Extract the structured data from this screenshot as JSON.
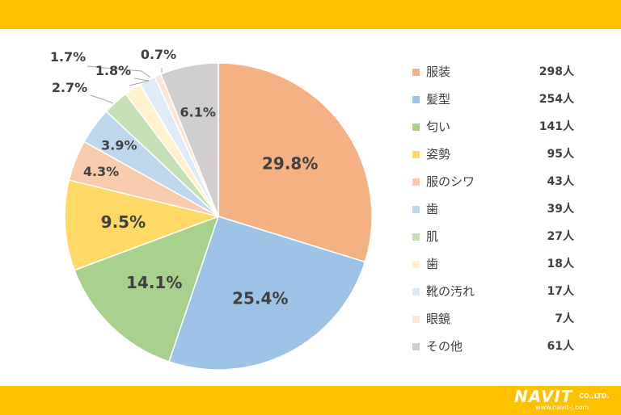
{
  "chart_data": {
    "type": "pie",
    "start_angle_deg": 0,
    "direction": "clockwise",
    "slices": [
      {
        "label": "服装",
        "count": "298人",
        "percent": 29.8,
        "percent_label": "29.8%",
        "color": "#F4B183"
      },
      {
        "label": "髪型",
        "count": "254人",
        "percent": 25.4,
        "percent_label": "25.4%",
        "color": "#9DC3E6"
      },
      {
        "label": "匂い",
        "count": "141人",
        "percent": 14.1,
        "percent_label": "14.1%",
        "color": "#A9D18E"
      },
      {
        "label": "姿勢",
        "count": "95人",
        "percent": 9.5,
        "percent_label": "9.5%",
        "color": "#FFD966"
      },
      {
        "label": "服のシワ",
        "count": "43人",
        "percent": 4.3,
        "percent_label": "4.3%",
        "color": "#F8CBAD"
      },
      {
        "label": "歯",
        "count": "39人",
        "percent": 3.9,
        "percent_label": "3.9%",
        "color": "#BDD7EE"
      },
      {
        "label": "肌",
        "count": "27人",
        "percent": 2.7,
        "percent_label": "2.7%",
        "color": "#C5E0B4"
      },
      {
        "label": "歯",
        "count": "18人",
        "percent": 1.8,
        "percent_label": "1.8%",
        "color": "#FFF2CC"
      },
      {
        "label": "靴の汚れ",
        "count": "17人",
        "percent": 1.7,
        "percent_label": "1.7%",
        "color": "#DEEBF7"
      },
      {
        "label": "眼鏡",
        "count": "7人",
        "percent": 0.7,
        "percent_label": "0.7%",
        "color": "#FBE5D6"
      },
      {
        "label": "その他",
        "count": "61人",
        "percent": 6.1,
        "percent_label": "6.1%",
        "color": "#D0CECE"
      }
    ],
    "legend_position": "right"
  },
  "brand": {
    "accent_color": "#FFC000",
    "logo_name": "NAVIT",
    "logo_suffix": "CO.,LTD.",
    "logo_url": "www.navit-j.com"
  }
}
